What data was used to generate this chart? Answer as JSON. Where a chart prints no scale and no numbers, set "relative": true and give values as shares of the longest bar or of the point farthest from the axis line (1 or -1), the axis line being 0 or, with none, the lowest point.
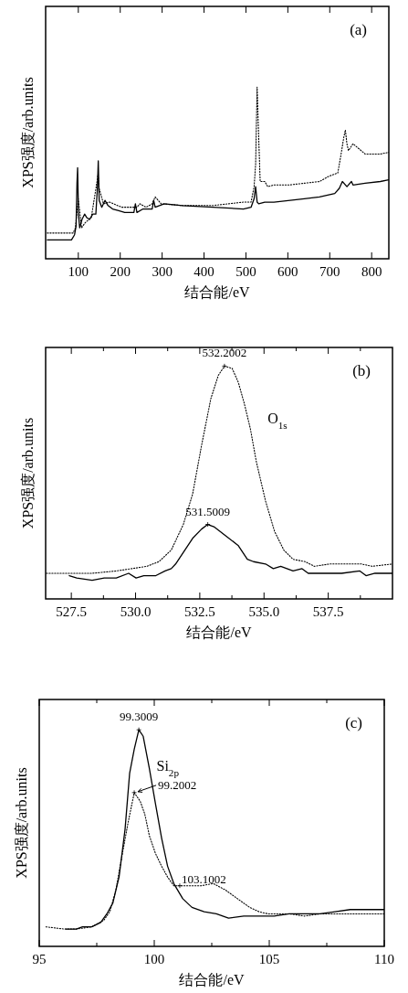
{
  "chart_data": [
    {
      "type": "line",
      "title": "(a)",
      "xlabel": "结合能/eV",
      "ylabel": "XPS强度/arb.units",
      "relative": true,
      "xlim": [
        22,
        841
      ],
      "xticks": [
        100,
        200,
        300,
        400,
        500,
        600,
        700,
        800
      ],
      "grid": false,
      "series": [
        {
          "color": "#000000",
          "line_style": "solid",
          "x": [
            26,
            83.7,
            91,
            94.6,
            96.8,
            98.3,
            100.4,
            103.3,
            109,
            115,
            120,
            127,
            134.6,
            141.8,
            145.5,
            147.6,
            149.8,
            156,
            163.6,
            170.9,
            181.8,
            196.3,
            210.8,
            232.6,
            236.2,
            239.9,
            254.4,
            276.2,
            279.8,
            283.4,
            305.2,
            348.8,
            421.4,
            494,
            512.2,
            519.5,
            523.1,
            526.7,
            530.4,
            544.9,
            566.7,
            639.3,
            675.6,
            711.9,
            722.8,
            730.1,
            741,
            751.8,
            755.5,
            784.5,
            820.8,
            841
          ],
          "values": [
            0.11,
            0.11,
            0.14,
            0.19,
            0.44,
            0.53,
            0.26,
            0.18,
            0.23,
            0.26,
            0.24,
            0.23,
            0.26,
            0.26,
            0.41,
            0.57,
            0.34,
            0.3,
            0.34,
            0.31,
            0.29,
            0.28,
            0.27,
            0.27,
            0.32,
            0.27,
            0.29,
            0.29,
            0.34,
            0.3,
            0.32,
            0.31,
            0.3,
            0.29,
            0.3,
            0.35,
            0.42,
            0.33,
            0.32,
            0.33,
            0.33,
            0.35,
            0.36,
            0.38,
            0.41,
            0.45,
            0.42,
            0.45,
            0.43,
            0.44,
            0.45,
            0.46
          ]
        },
        {
          "color": "#000000",
          "line_style": "dotted",
          "x": [
            26,
            87.4,
            93.2,
            96.1,
            99.7,
            103.3,
            107.7,
            116.4,
            130.9,
            144,
            146.9,
            149.8,
            160,
            174.5,
            203.6,
            239.9,
            247.1,
            261.6,
            276.2,
            283.4,
            297.9,
            348.8,
            421.4,
            494,
            512.2,
            519.5,
            523.1,
            526.7,
            530.4,
            534,
            544.9,
            552.1,
            566.7,
            603,
            639.3,
            675.6,
            697.4,
            719.2,
            726.4,
            733.7,
            737.3,
            741,
            744.6,
            755.5,
            770,
            784.5,
            820.8,
            841
          ],
          "values": [
            0.15,
            0.15,
            0.18,
            0.26,
            0.35,
            0.28,
            0.18,
            0.21,
            0.24,
            0.44,
            0.49,
            0.41,
            0.32,
            0.33,
            0.3,
            0.3,
            0.32,
            0.3,
            0.32,
            0.36,
            0.32,
            0.31,
            0.31,
            0.33,
            0.33,
            0.42,
            0.55,
            1,
            0.71,
            0.45,
            0.45,
            0.42,
            0.43,
            0.43,
            0.44,
            0.45,
            0.48,
            0.5,
            0.6,
            0.71,
            0.75,
            0.67,
            0.63,
            0.67,
            0.64,
            0.61,
            0.61,
            0.62
          ]
        }
      ]
    },
    {
      "type": "line",
      "title": "(b)",
      "xlabel": "结合能/eV",
      "ylabel": "XPS强度/arb.units",
      "relative": true,
      "xlim": [
        526.5,
        540
      ],
      "xticks": [
        527.5,
        {
          "value": 528.75,
          "label": null
        },
        {
          "value": 530,
          "label": "530.0"
        },
        {
          "value": 531.25,
          "label": null
        },
        532.5,
        {
          "value": 533.75,
          "label": null
        },
        {
          "value": 535,
          "label": "535.0"
        },
        {
          "value": 536.25,
          "label": null
        },
        537.5,
        {
          "value": 538.75,
          "label": null
        }
      ],
      "grid": false,
      "annotations": [
        {
          "text": "532.2002",
          "x": 533.46,
          "y": 1
        },
        {
          "text": "531.5009",
          "x": 532.81,
          "y": 0.32
        },
        "O$_{1s}$"
      ],
      "series": [
        {
          "color": "#000000",
          "line_style": "solid",
          "x": [
            527.42,
            527.71,
            528.31,
            528.78,
            529.25,
            529.73,
            530.02,
            530.32,
            530.79,
            531.15,
            531.39,
            531.56,
            531.86,
            532.22,
            532.57,
            532.81,
            533.05,
            533.52,
            533.99,
            534.35,
            534.59,
            535.06,
            535.36,
            535.65,
            536.13,
            536.48,
            536.72,
            537.31,
            538.02,
            538.73,
            538.97,
            539.32,
            540
          ],
          "values": [
            0.1,
            0.09,
            0.08,
            0.09,
            0.09,
            0.11,
            0.09,
            0.1,
            0.1,
            0.12,
            0.13,
            0.15,
            0.2,
            0.26,
            0.3,
            0.32,
            0.31,
            0.27,
            0.23,
            0.17,
            0.16,
            0.15,
            0.13,
            0.14,
            0.12,
            0.13,
            0.11,
            0.11,
            0.11,
            0.12,
            0.1,
            0.11,
            0.11
          ]
        },
        {
          "color": "#000000",
          "line_style": "dotted",
          "x": [
            526.53,
            527.48,
            528.31,
            529.25,
            529.85,
            530.44,
            530.91,
            531.39,
            531.86,
            532.22,
            532.57,
            532.93,
            533.22,
            533.46,
            533.76,
            534,
            534.23,
            534.47,
            534.7,
            535.06,
            535.41,
            535.77,
            536.13,
            536.6,
            536.96,
            537.55,
            538.14,
            538.79,
            539.21,
            540
          ],
          "values": [
            0.11,
            0.11,
            0.11,
            0.12,
            0.13,
            0.14,
            0.16,
            0.21,
            0.32,
            0.45,
            0.66,
            0.86,
            0.96,
            1,
            0.99,
            0.93,
            0.84,
            0.73,
            0.59,
            0.42,
            0.29,
            0.21,
            0.17,
            0.16,
            0.14,
            0.15,
            0.15,
            0.15,
            0.14,
            0.15
          ]
        }
      ]
    },
    {
      "type": "line",
      "title": "(c)",
      "xlabel": "结合能/eV",
      "ylabel": "XPS强度/arb.units",
      "relative": true,
      "xlim": [
        95,
        110
      ],
      "xticks": [
        95,
        {
          "value": 97.5,
          "label": null
        },
        100,
        {
          "value": 102.5,
          "label": null
        },
        105,
        {
          "value": 107.5,
          "label": null
        },
        110
      ],
      "grid": false,
      "annotations": [
        {
          "text": "99.3009",
          "x": 99.33,
          "y": 1
        },
        "Si$_{2p}$",
        {
          "text": "99.2002",
          "x": 99.13,
          "y": 0.71
        },
        {
          "text": "103.1002",
          "x": 101.11,
          "y": 0.28
        }
      ],
      "series": [
        {
          "color": "#000000",
          "line_style": "solid",
          "x": [
            96.15,
            96.61,
            96.88,
            97.28,
            97.67,
            97.94,
            98.2,
            98.47,
            98.73,
            98.93,
            99.13,
            99.33,
            99.52,
            99.79,
            100.05,
            100.32,
            100.58,
            100.85,
            101.24,
            101.64,
            102.17,
            102.7,
            103.23,
            103.89,
            104.55,
            105.21,
            105.87,
            106.53,
            107.2,
            107.86,
            108.52,
            109.18,
            110
          ],
          "values": [
            0.08,
            0.08,
            0.09,
            0.09,
            0.11,
            0.15,
            0.2,
            0.32,
            0.54,
            0.8,
            0.91,
            1,
            0.97,
            0.82,
            0.66,
            0.5,
            0.37,
            0.29,
            0.22,
            0.18,
            0.16,
            0.15,
            0.13,
            0.14,
            0.14,
            0.14,
            0.15,
            0.15,
            0.15,
            0.16,
            0.17,
            0.17,
            0.17
          ]
        },
        {
          "color": "#000000",
          "line_style": "dotted",
          "x": [
            95.29,
            96.08,
            96.61,
            97.28,
            97.8,
            98.07,
            98.33,
            98.6,
            98.86,
            99.13,
            99.39,
            99.59,
            99.79,
            100.05,
            100.32,
            100.58,
            100.85,
            101.11,
            101.51,
            102.04,
            102.57,
            103.1,
            103.62,
            104.15,
            104.55,
            104.95,
            105.87,
            106.53,
            107.2,
            107.86,
            108.52,
            110
          ],
          "values": [
            0.09,
            0.08,
            0.08,
            0.09,
            0.12,
            0.16,
            0.26,
            0.42,
            0.57,
            0.71,
            0.67,
            0.61,
            0.51,
            0.43,
            0.37,
            0.32,
            0.28,
            0.28,
            0.28,
            0.28,
            0.29,
            0.26,
            0.22,
            0.18,
            0.16,
            0.15,
            0.15,
            0.14,
            0.15,
            0.15,
            0.15,
            0.15
          ]
        }
      ]
    }
  ]
}
